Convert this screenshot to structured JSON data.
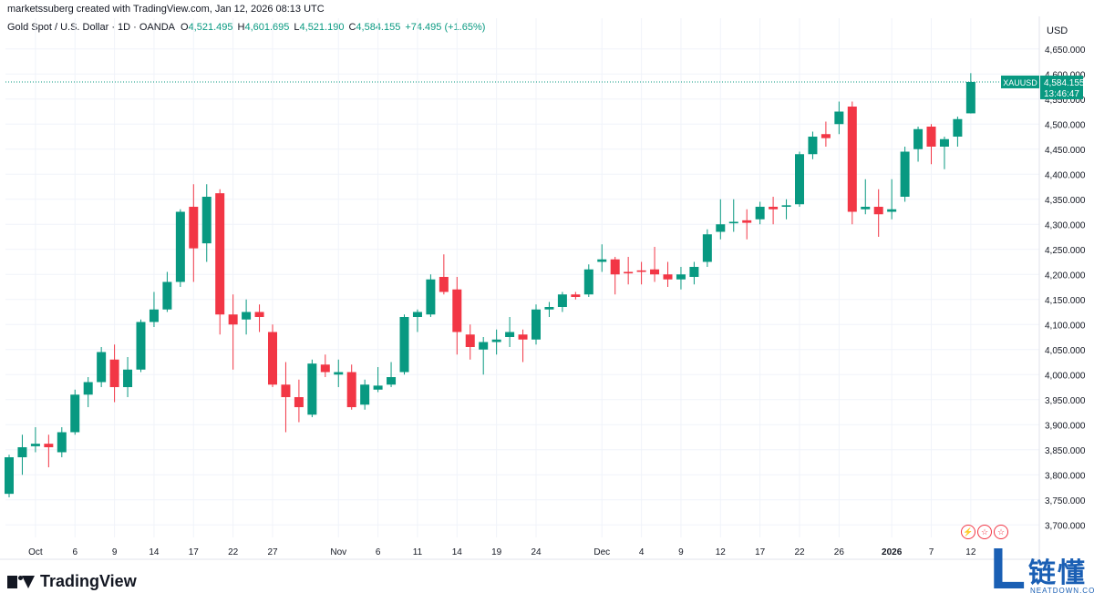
{
  "header": {
    "attribution": "marketssuberg created with TradingView.com, Jan 12, 2026 08:13 UTC",
    "symbol_title": "Gold Spot / U.S. Dollar · 1D · OANDA",
    "open_label": "O",
    "open": "4,521.495",
    "high_label": "H",
    "high": "4,601.695",
    "low_label": "L",
    "low": "4,521.190",
    "close_label": "C",
    "close": "4,584.155",
    "change": "+74.495 (+1.65%)"
  },
  "currency": "USD",
  "price_tag": {
    "symbol": "XAUUSD",
    "price": "4,584.155",
    "countdown": "13:46:47"
  },
  "footer": {
    "brand": "TradingView"
  },
  "watermark": {
    "cn": "链懂",
    "en": "NEATDOWN.COM",
    "letter": "L"
  },
  "flag_icons": [
    "lightning-icon",
    "us-flag-icon",
    "us-flag-icon"
  ],
  "colors": {
    "up": "#089981",
    "down": "#f23645",
    "grid": "#f0f3fa",
    "last_line": "#089981"
  },
  "chart_data": {
    "type": "candlestick",
    "title": "Gold Spot / U.S. Dollar · 1D · OANDA",
    "y_axis": {
      "min": 3675,
      "max": 4675,
      "ticks": [
        3700,
        3750,
        3800,
        3850,
        3900,
        3950,
        4000,
        4050,
        4100,
        4150,
        4200,
        4250,
        4300,
        4350,
        4400,
        4450,
        4500,
        4550,
        4600,
        4650
      ]
    },
    "y_tick_labels": [
      "3,700.000",
      "3,750.000",
      "3,800.000",
      "3,850.000",
      "3,900.000",
      "3,950.000",
      "4,000.000",
      "4,050.000",
      "4,100.000",
      "4,150.000",
      "4,200.000",
      "4,250.000",
      "4,300.000",
      "4,350.000",
      "4,400.000",
      "4,450.000",
      "4,500.000",
      "4,550.000",
      "4,600.000",
      "4,650.000"
    ],
    "x_tick_labels": [
      {
        "label": "Oct",
        "index": 2
      },
      {
        "label": "6",
        "index": 5
      },
      {
        "label": "9",
        "index": 8
      },
      {
        "label": "14",
        "index": 11
      },
      {
        "label": "17",
        "index": 14
      },
      {
        "label": "22",
        "index": 17
      },
      {
        "label": "27",
        "index": 20
      },
      {
        "label": "Nov",
        "index": 25
      },
      {
        "label": "6",
        "index": 28
      },
      {
        "label": "11",
        "index": 31
      },
      {
        "label": "14",
        "index": 34
      },
      {
        "label": "19",
        "index": 37
      },
      {
        "label": "24",
        "index": 40
      },
      {
        "label": "Dec",
        "index": 45
      },
      {
        "label": "4",
        "index": 48
      },
      {
        "label": "9",
        "index": 51
      },
      {
        "label": "12",
        "index": 54
      },
      {
        "label": "17",
        "index": 57
      },
      {
        "label": "22",
        "index": 60
      },
      {
        "label": "26",
        "index": 63
      },
      {
        "label": "2026",
        "index": 67
      },
      {
        "label": "7",
        "index": 70
      },
      {
        "label": "12",
        "index": 73
      }
    ],
    "candles": [
      {
        "o": 3762,
        "h": 3840,
        "l": 3755,
        "c": 3835
      },
      {
        "o": 3835,
        "h": 3880,
        "l": 3800,
        "c": 3855
      },
      {
        "o": 3857,
        "h": 3895,
        "l": 3845,
        "c": 3862
      },
      {
        "o": 3862,
        "h": 3880,
        "l": 3815,
        "c": 3855
      },
      {
        "o": 3845,
        "h": 3895,
        "l": 3835,
        "c": 3885
      },
      {
        "o": 3885,
        "h": 3970,
        "l": 3880,
        "c": 3960
      },
      {
        "o": 3960,
        "h": 3995,
        "l": 3935,
        "c": 3985
      },
      {
        "o": 3985,
        "h": 4055,
        "l": 3975,
        "c": 4045
      },
      {
        "o": 4030,
        "h": 4060,
        "l": 3945,
        "c": 3975
      },
      {
        "o": 3975,
        "h": 4035,
        "l": 3955,
        "c": 4010
      },
      {
        "o": 4010,
        "h": 4110,
        "l": 4005,
        "c": 4105
      },
      {
        "o": 4105,
        "h": 4165,
        "l": 4095,
        "c": 4130
      },
      {
        "o": 4130,
        "h": 4205,
        "l": 4125,
        "c": 4185
      },
      {
        "o": 4185,
        "h": 4330,
        "l": 4175,
        "c": 4325
      },
      {
        "o": 4335,
        "h": 4380,
        "l": 4185,
        "c": 4252
      },
      {
        "o": 4262,
        "h": 4380,
        "l": 4225,
        "c": 4355
      },
      {
        "o": 4362,
        "h": 4370,
        "l": 4080,
        "c": 4120
      },
      {
        "o": 4120,
        "h": 4160,
        "l": 4010,
        "c": 4100
      },
      {
        "o": 4110,
        "h": 4150,
        "l": 4080,
        "c": 4125
      },
      {
        "o": 4125,
        "h": 4140,
        "l": 4085,
        "c": 4115
      },
      {
        "o": 4085,
        "h": 4100,
        "l": 3975,
        "c": 3980
      },
      {
        "o": 3980,
        "h": 4025,
        "l": 3885,
        "c": 3955
      },
      {
        "o": 3955,
        "h": 3990,
        "l": 3905,
        "c": 3935
      },
      {
        "o": 3920,
        "h": 4030,
        "l": 3915,
        "c": 4022
      },
      {
        "o": 4020,
        "h": 4040,
        "l": 3995,
        "c": 4005
      },
      {
        "o": 4000,
        "h": 4030,
        "l": 3975,
        "c": 4005
      },
      {
        "o": 4005,
        "h": 4020,
        "l": 3930,
        "c": 3935
      },
      {
        "o": 3940,
        "h": 3990,
        "l": 3930,
        "c": 3980
      },
      {
        "o": 3970,
        "h": 4015,
        "l": 3965,
        "c": 3978
      },
      {
        "o": 3980,
        "h": 4025,
        "l": 3975,
        "c": 3995
      },
      {
        "o": 4005,
        "h": 4120,
        "l": 4000,
        "c": 4115
      },
      {
        "o": 4115,
        "h": 4130,
        "l": 4085,
        "c": 4125
      },
      {
        "o": 4120,
        "h": 4200,
        "l": 4115,
        "c": 4190
      },
      {
        "o": 4195,
        "h": 4240,
        "l": 4160,
        "c": 4165
      },
      {
        "o": 4170,
        "h": 4195,
        "l": 4040,
        "c": 4085
      },
      {
        "o": 4080,
        "h": 4100,
        "l": 4030,
        "c": 4055
      },
      {
        "o": 4050,
        "h": 4075,
        "l": 4000,
        "c": 4065
      },
      {
        "o": 4065,
        "h": 4090,
        "l": 4040,
        "c": 4070
      },
      {
        "o": 4075,
        "h": 4115,
        "l": 4055,
        "c": 4085
      },
      {
        "o": 4080,
        "h": 4090,
        "l": 4025,
        "c": 4070
      },
      {
        "o": 4070,
        "h": 4140,
        "l": 4060,
        "c": 4130
      },
      {
        "o": 4130,
        "h": 4145,
        "l": 4115,
        "c": 4135
      },
      {
        "o": 4135,
        "h": 4165,
        "l": 4125,
        "c": 4160
      },
      {
        "o": 4160,
        "h": 4165,
        "l": 4150,
        "c": 4155
      },
      {
        "o": 4160,
        "h": 4220,
        "l": 4155,
        "c": 4210
      },
      {
        "o": 4225,
        "h": 4260,
        "l": 4205,
        "c": 4230
      },
      {
        "o": 4230,
        "h": 4235,
        "l": 4160,
        "c": 4200
      },
      {
        "o": 4205,
        "h": 4235,
        "l": 4180,
        "c": 4202
      },
      {
        "o": 4208,
        "h": 4225,
        "l": 4180,
        "c": 4205
      },
      {
        "o": 4210,
        "h": 4255,
        "l": 4185,
        "c": 4200
      },
      {
        "o": 4200,
        "h": 4225,
        "l": 4175,
        "c": 4190
      },
      {
        "o": 4190,
        "h": 4215,
        "l": 4170,
        "c": 4200
      },
      {
        "o": 4195,
        "h": 4225,
        "l": 4180,
        "c": 4215
      },
      {
        "o": 4225,
        "h": 4290,
        "l": 4215,
        "c": 4280
      },
      {
        "o": 4285,
        "h": 4350,
        "l": 4270,
        "c": 4300
      },
      {
        "o": 4302,
        "h": 4350,
        "l": 4285,
        "c": 4305
      },
      {
        "o": 4308,
        "h": 4330,
        "l": 4270,
        "c": 4303
      },
      {
        "o": 4310,
        "h": 4345,
        "l": 4300,
        "c": 4335
      },
      {
        "o": 4335,
        "h": 4355,
        "l": 4300,
        "c": 4330
      },
      {
        "o": 4335,
        "h": 4350,
        "l": 4310,
        "c": 4338
      },
      {
        "o": 4340,
        "h": 4445,
        "l": 4335,
        "c": 4440
      },
      {
        "o": 4440,
        "h": 4485,
        "l": 4430,
        "c": 4475
      },
      {
        "o": 4480,
        "h": 4505,
        "l": 4455,
        "c": 4472
      },
      {
        "o": 4500,
        "h": 4545,
        "l": 4480,
        "c": 4525
      },
      {
        "o": 4535,
        "h": 4545,
        "l": 4300,
        "c": 4325
      },
      {
        "o": 4330,
        "h": 4390,
        "l": 4320,
        "c": 4335
      },
      {
        "o": 4335,
        "h": 4370,
        "l": 4275,
        "c": 4320
      },
      {
        "o": 4325,
        "h": 4390,
        "l": 4310,
        "c": 4330
      },
      {
        "o": 4355,
        "h": 4455,
        "l": 4345,
        "c": 4445
      },
      {
        "o": 4450,
        "h": 4495,
        "l": 4425,
        "c": 4490
      },
      {
        "o": 4495,
        "h": 4500,
        "l": 4420,
        "c": 4455
      },
      {
        "o": 4455,
        "h": 4475,
        "l": 4410,
        "c": 4470
      },
      {
        "o": 4475,
        "h": 4515,
        "l": 4455,
        "c": 4510
      },
      {
        "o": 4521.495,
        "h": 4601.695,
        "l": 4521.19,
        "c": 4584.155
      }
    ]
  }
}
